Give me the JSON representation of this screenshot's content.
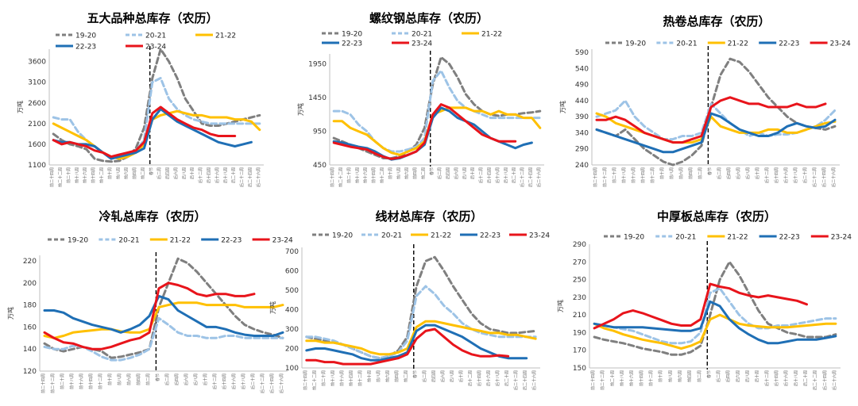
{
  "colors": {
    "19-20": "#7f7f7f",
    "20-21": "#9dc3e6",
    "21-22": "#ffc000",
    "22-23": "#1f6fb5",
    "23-24": "#e8141b"
  },
  "x_tick_labels": [
    "前二十四周",
    "前二十二周",
    "前二十周",
    "前十八周",
    "前十六周",
    "前十四周",
    "前十二周",
    "前十周",
    "前八周",
    "前六周",
    "前四周",
    "前二周",
    "春节",
    "后二周",
    "后四周",
    "后六周",
    "后八周",
    "后十周",
    "后十二周",
    "后十四周",
    "后十六周",
    "后十八周",
    "后二十周",
    "后二十二周",
    "后二十四周",
    "后二十六周"
  ],
  "chart_data": [
    {
      "type": "line",
      "title": "五大品种总库存（农历）",
      "ylabel": "万吨",
      "yticks": [
        1100,
        1600,
        2100,
        2600,
        3100,
        3600
      ],
      "ylim": [
        1100,
        3900
      ],
      "legend": [
        "19-20",
        "20-21",
        "21-22",
        "22-23",
        "23-24"
      ],
      "series": [
        {
          "name": "19-20",
          "values": [
            1850,
            1700,
            1600,
            1550,
            1480,
            1250,
            1200,
            1180,
            1200,
            1300,
            1500,
            2000,
            3200,
            3900,
            3600,
            3200,
            2700,
            2400,
            2100,
            2050,
            2050,
            2100,
            2150,
            2200,
            2250,
            2300
          ]
        },
        {
          "name": "20-21",
          "values": [
            2250,
            2200,
            2200,
            1900,
            1700,
            1550,
            1400,
            1300,
            1300,
            1350,
            1450,
            1700,
            3100,
            3200,
            2700,
            2450,
            2300,
            2200,
            2150,
            2100,
            2100,
            2100,
            2100,
            2100,
            2100,
            2100
          ]
        },
        {
          "name": "21-22",
          "values": [
            2100,
            2000,
            1900,
            1800,
            1700,
            1550,
            1400,
            1300,
            1250,
            1300,
            1400,
            1600,
            2200,
            2300,
            2350,
            2400,
            2350,
            2300,
            2300,
            2250,
            2250,
            2250,
            2200,
            2200,
            2150,
            1950
          ]
        },
        {
          "name": "22-23",
          "values": [
            1700,
            1650,
            1650,
            1600,
            1600,
            1550,
            1400,
            1250,
            1300,
            1350,
            1400,
            1500,
            2200,
            2450,
            2300,
            2150,
            2050,
            1950,
            1850,
            1750,
            1650,
            1600,
            1550,
            1600,
            1650
          ]
        },
        {
          "name": "23-24",
          "values": [
            1700,
            1600,
            1650,
            1600,
            1550,
            1450,
            1400,
            1300,
            1350,
            1400,
            1450,
            1650,
            2350,
            2500,
            2350,
            2200,
            2100,
            2000,
            1950,
            1850,
            1800,
            1800,
            1800
          ]
        }
      ]
    },
    {
      "type": "line",
      "title": "螺纹钢总库存（农历）",
      "ylabel": "万吨",
      "yticks": [
        450,
        950,
        1450,
        1950
      ],
      "ylim": [
        450,
        2100
      ],
      "legend": [
        "19-20",
        "20-21",
        "21-22",
        "22-23",
        "23-24"
      ],
      "series": [
        {
          "name": "19-20",
          "values": [
            850,
            800,
            750,
            700,
            650,
            600,
            550,
            550,
            580,
            650,
            750,
            1000,
            1650,
            2050,
            1950,
            1750,
            1500,
            1350,
            1250,
            1200,
            1180,
            1200,
            1200,
            1220,
            1230,
            1250
          ]
        },
        {
          "name": "20-21",
          "values": [
            1250,
            1250,
            1200,
            1050,
            950,
            800,
            700,
            650,
            650,
            680,
            720,
            850,
            1700,
            1850,
            1600,
            1400,
            1300,
            1250,
            1200,
            1150,
            1150,
            1150,
            1150,
            1150,
            1150,
            1150
          ]
        },
        {
          "name": "21-22",
          "values": [
            1100,
            1100,
            1000,
            950,
            900,
            800,
            700,
            630,
            600,
            650,
            700,
            800,
            1200,
            1250,
            1300,
            1300,
            1300,
            1250,
            1250,
            1200,
            1250,
            1200,
            1200,
            1150,
            1150,
            1000
          ]
        },
        {
          "name": "22-23",
          "values": [
            800,
            780,
            750,
            720,
            700,
            650,
            580,
            530,
            550,
            600,
            650,
            750,
            1150,
            1300,
            1250,
            1150,
            1100,
            1050,
            950,
            850,
            800,
            750,
            700,
            750,
            780
          ]
        },
        {
          "name": "23-24",
          "values": [
            780,
            750,
            720,
            700,
            680,
            620,
            570,
            540,
            560,
            600,
            650,
            780,
            1200,
            1350,
            1300,
            1200,
            1100,
            1000,
            900,
            850,
            800,
            800,
            800
          ]
        }
      ]
    },
    {
      "type": "line",
      "title": "热卷总库存（农历）",
      "ylabel": "万吨",
      "yticks": [
        240,
        290,
        340,
        390,
        440,
        490,
        540,
        590
      ],
      "ylim": [
        240,
        600
      ],
      "legend": [
        "19-20",
        "20-21",
        "21-22",
        "22-23",
        "23-24"
      ],
      "series": [
        {
          "name": "19-20",
          "values": [
            350,
            340,
            330,
            350,
            320,
            290,
            270,
            250,
            240,
            250,
            270,
            300,
            420,
            520,
            570,
            560,
            530,
            490,
            450,
            420,
            390,
            370,
            360,
            355,
            350,
            360
          ]
        },
        {
          "name": "20-21",
          "values": [
            390,
            400,
            410,
            440,
            390,
            360,
            340,
            320,
            320,
            330,
            330,
            340,
            430,
            400,
            370,
            350,
            330,
            340,
            330,
            335,
            335,
            340,
            350,
            360,
            380,
            410
          ]
        },
        {
          "name": "21-22",
          "values": [
            400,
            390,
            370,
            360,
            350,
            340,
            330,
            320,
            310,
            310,
            310,
            320,
            390,
            360,
            350,
            340,
            340,
            340,
            350,
            350,
            340,
            340,
            350,
            360,
            370,
            375
          ]
        },
        {
          "name": "22-23",
          "values": [
            350,
            340,
            330,
            320,
            310,
            300,
            290,
            280,
            280,
            290,
            300,
            310,
            400,
            390,
            370,
            350,
            340,
            330,
            330,
            340,
            360,
            370,
            360,
            355,
            360,
            380
          ]
        },
        {
          "name": "23-24",
          "values": [
            380,
            380,
            390,
            380,
            360,
            340,
            330,
            320,
            310,
            310,
            320,
            330,
            420,
            440,
            450,
            440,
            430,
            430,
            420,
            420,
            420,
            430,
            420,
            420,
            430
          ]
        }
      ]
    },
    {
      "type": "line",
      "title": "冷轧总库存（农历）",
      "ylabel": "万吨",
      "yticks": [
        120,
        140,
        160,
        180,
        200,
        220
      ],
      "ylim": [
        120,
        225
      ],
      "legend": [
        "19-20",
        "20-21",
        "21-22",
        "22-23",
        "23-24"
      ],
      "series": [
        {
          "name": "19-20",
          "values": [
            145,
            140,
            138,
            140,
            142,
            140,
            138,
            132,
            133,
            135,
            137,
            140,
            178,
            200,
            222,
            218,
            210,
            200,
            190,
            180,
            170,
            162,
            158,
            155,
            153,
            150
          ]
        },
        {
          "name": "20-21",
          "values": [
            142,
            140,
            140,
            143,
            142,
            138,
            133,
            130,
            130,
            132,
            135,
            140,
            168,
            162,
            155,
            152,
            152,
            150,
            150,
            152,
            152,
            150,
            150,
            150,
            150,
            150
          ]
        },
        {
          "name": "21-22",
          "values": [
            152,
            150,
            152,
            155,
            156,
            157,
            158,
            158,
            156,
            155,
            155,
            158,
            178,
            180,
            182,
            182,
            182,
            180,
            180,
            180,
            180,
            178,
            178,
            178,
            178,
            180
          ]
        },
        {
          "name": "22-23",
          "values": [
            175,
            175,
            173,
            168,
            165,
            162,
            160,
            158,
            155,
            158,
            162,
            170,
            188,
            185,
            175,
            170,
            165,
            160,
            160,
            158,
            155,
            153,
            152,
            152,
            152,
            155
          ]
        },
        {
          "name": "23-24",
          "values": [
            155,
            150,
            146,
            145,
            142,
            140,
            140,
            142,
            145,
            148,
            150,
            155,
            195,
            200,
            198,
            195,
            190,
            188,
            190,
            190,
            188,
            188,
            190
          ]
        }
      ]
    },
    {
      "type": "line",
      "title": "线材总库存（农历）",
      "ylabel": "万吨",
      "yticks": [
        100,
        200,
        300,
        400,
        500,
        600,
        700
      ],
      "ylim": [
        100,
        720
      ],
      "legend": [
        "19-20",
        "20-21",
        "21-22",
        "22-23",
        "23-24"
      ],
      "series": [
        {
          "name": "19-20",
          "values": [
            260,
            250,
            240,
            230,
            220,
            200,
            180,
            160,
            150,
            160,
            190,
            260,
            520,
            650,
            670,
            600,
            520,
            450,
            380,
            330,
            300,
            290,
            280,
            280,
            285,
            290
          ]
        },
        {
          "name": "20-21",
          "values": [
            260,
            260,
            250,
            240,
            220,
            200,
            180,
            160,
            150,
            160,
            180,
            240,
            470,
            520,
            480,
            420,
            380,
            330,
            300,
            280,
            270,
            260,
            260,
            260,
            260,
            260
          ]
        },
        {
          "name": "21-22",
          "values": [
            240,
            240,
            230,
            230,
            220,
            210,
            200,
            180,
            170,
            170,
            180,
            200,
            310,
            340,
            340,
            330,
            320,
            310,
            300,
            290,
            280,
            280,
            270,
            270,
            260,
            250
          ]
        },
        {
          "name": "22-23",
          "values": [
            190,
            200,
            200,
            190,
            180,
            170,
            150,
            140,
            140,
            150,
            160,
            180,
            290,
            320,
            320,
            300,
            280,
            260,
            230,
            200,
            180,
            160,
            150,
            150,
            150
          ]
        },
        {
          "name": "23-24",
          "values": [
            140,
            140,
            130,
            130,
            120,
            120,
            120,
            120,
            130,
            140,
            150,
            170,
            250,
            290,
            300,
            260,
            220,
            190,
            170,
            160,
            160,
            165,
            160
          ]
        }
      ]
    },
    {
      "type": "line",
      "title": "中厚板总库存（农历）",
      "ylabel": "万吨",
      "yticks": [
        150,
        170,
        190,
        210,
        230,
        250,
        270,
        290
      ],
      "ylim": [
        150,
        290
      ],
      "legend": [
        "19-20",
        "20-21",
        "21-22",
        "22-23",
        "23-24"
      ],
      "series": [
        {
          "name": "19-20",
          "values": [
            185,
            182,
            180,
            178,
            175,
            172,
            170,
            168,
            165,
            165,
            168,
            175,
            210,
            250,
            270,
            255,
            235,
            215,
            200,
            195,
            190,
            188,
            185,
            185,
            185,
            188
          ]
        },
        {
          "name": "20-21",
          "values": [
            200,
            198,
            196,
            194,
            192,
            188,
            184,
            180,
            178,
            178,
            180,
            190,
            235,
            240,
            225,
            210,
            200,
            195,
            195,
            198,
            198,
            200,
            202,
            204,
            206,
            206
          ]
        },
        {
          "name": "21-22",
          "values": [
            200,
            195,
            192,
            188,
            185,
            182,
            180,
            178,
            175,
            172,
            175,
            180,
            205,
            210,
            205,
            200,
            198,
            197,
            196,
            196,
            196,
            197,
            198,
            199,
            200,
            200
          ]
        },
        {
          "name": "22-23",
          "values": [
            200,
            198,
            196,
            196,
            196,
            196,
            195,
            194,
            193,
            192,
            192,
            195,
            225,
            220,
            205,
            195,
            188,
            182,
            178,
            178,
            180,
            182,
            182,
            182,
            184,
            186
          ]
        },
        {
          "name": "23-24",
          "values": [
            195,
            200,
            205,
            212,
            215,
            212,
            208,
            204,
            200,
            198,
            198,
            205,
            245,
            242,
            240,
            235,
            232,
            230,
            232,
            230,
            228,
            226,
            222
          ]
        }
      ]
    }
  ]
}
